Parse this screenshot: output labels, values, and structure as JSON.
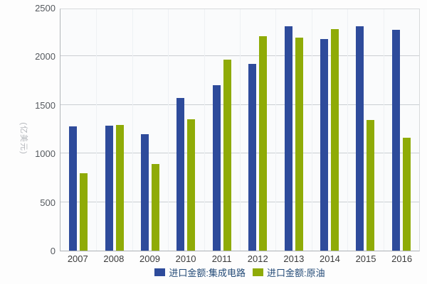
{
  "chart_data": {
    "type": "bar",
    "title": "",
    "ylabel": "(亿美元)",
    "xlabel": "",
    "ylim": [
      0,
      2500
    ],
    "yticks": [
      0,
      500,
      1000,
      1500,
      2000,
      2500
    ],
    "grid": true,
    "legend_position": "bottom",
    "categories": [
      "2007",
      "2008",
      "2009",
      "2010",
      "2011",
      "2012",
      "2013",
      "2014",
      "2015",
      "2016"
    ],
    "series": [
      {
        "name": "进口金额:集成电路",
        "color": "#2e4b9b",
        "values": [
          1277,
          1290,
          1199,
          1570,
          1702,
          1921,
          2313,
          2176,
          2307,
          2271
        ]
      },
      {
        "name": "进口金额:原油",
        "color": "#8fab07",
        "values": [
          797,
          1293,
          893,
          1352,
          1967,
          2206,
          2196,
          2283,
          1344,
          1165
        ]
      }
    ]
  },
  "colors": {
    "grid_line": "#cbcfd3",
    "vertical_grid_line": "#eef1f4",
    "axis_line": "#aeb2b6",
    "tick_label": "#55595e",
    "legend_text": "#234a77",
    "plot_background": "#fafbfc"
  }
}
